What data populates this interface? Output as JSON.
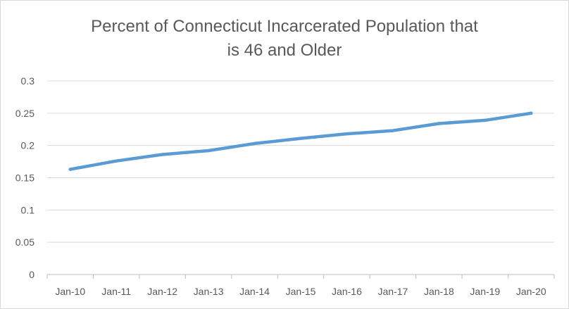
{
  "chart_data": {
    "type": "line",
    "title_lines": [
      "Percent of Connecticut Incarcerated Population that",
      "is 46 and Older"
    ],
    "categories": [
      "Jan-10",
      "Jan-11",
      "Jan-12",
      "Jan-13",
      "Jan-14",
      "Jan-15",
      "Jan-16",
      "Jan-17",
      "Jan-18",
      "Jan-19",
      "Jan-20"
    ],
    "series": [
      {
        "values": [
          0.163,
          0.176,
          0.186,
          0.192,
          0.203,
          0.211,
          0.218,
          0.223,
          0.234,
          0.239,
          0.25
        ],
        "color": "#5b9bd5"
      }
    ],
    "y_ticks": [
      "0",
      "0.05",
      "0.1",
      "0.15",
      "0.2",
      "0.25",
      "0.3"
    ],
    "ylim": [
      0,
      0.3
    ],
    "grid": true,
    "legend": "none"
  }
}
